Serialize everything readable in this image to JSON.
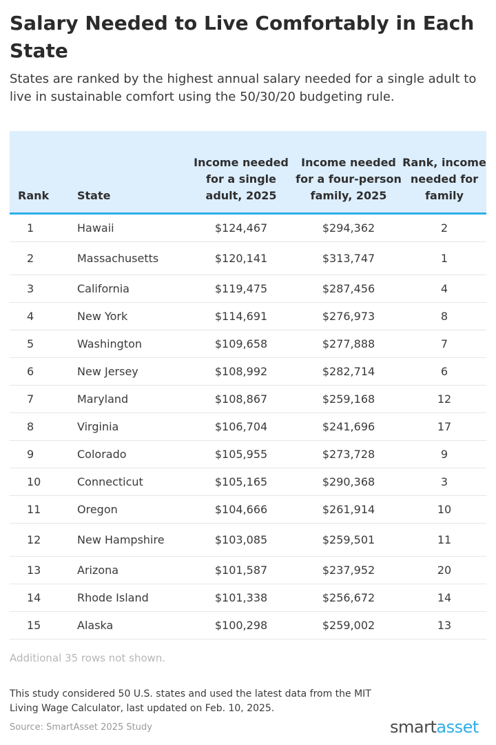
{
  "title": "Salary Needed to Live Comfortably in Each State",
  "subtitle": "States are ranked by the highest annual salary needed for a single adult to live in sustainable comfort using the 50/30/20 budgeting rule.",
  "chart_data": {
    "type": "table",
    "columns": [
      "Rank",
      "State",
      "Income needed for a single adult, 2025",
      "Income needed for a four-person family, 2025",
      "Rank, income needed for family"
    ],
    "rows": [
      [
        "1",
        "Hawaii",
        "$124,467",
        "$294,362",
        "2"
      ],
      [
        "2",
        "Massachusetts",
        "$120,141",
        "$313,747",
        "1"
      ],
      [
        "3",
        "California",
        "$119,475",
        "$287,456",
        "4"
      ],
      [
        "4",
        "New York",
        "$114,691",
        "$276,973",
        "8"
      ],
      [
        "5",
        "Washington",
        "$109,658",
        "$277,888",
        "7"
      ],
      [
        "6",
        "New Jersey",
        "$108,992",
        "$282,714",
        "6"
      ],
      [
        "7",
        "Maryland",
        "$108,867",
        "$259,168",
        "12"
      ],
      [
        "8",
        "Virginia",
        "$106,704",
        "$241,696",
        "17"
      ],
      [
        "9",
        "Colorado",
        "$105,955",
        "$273,728",
        "9"
      ],
      [
        "10",
        "Connecticut",
        "$105,165",
        "$290,368",
        "3"
      ],
      [
        "11",
        "Oregon",
        "$104,666",
        "$261,914",
        "10"
      ],
      [
        "12",
        "New Hampshire",
        "$103,085",
        "$259,501",
        "11"
      ],
      [
        "13",
        "Arizona",
        "$101,587",
        "$237,952",
        "20"
      ],
      [
        "14",
        "Rhode Island",
        "$101,338",
        "$256,672",
        "14"
      ],
      [
        "15",
        "Alaska",
        "$100,298",
        "$259,002",
        "13"
      ]
    ]
  },
  "note": "Additional 35 rows not shown.",
  "footnote": "This study considered 50 U.S. states and used the latest data from the MIT Living Wage Calculator, last updated on Feb. 10, 2025.",
  "source": "Source: SmartAsset 2025 Study",
  "logo": {
    "part1": "smart",
    "part2": "asset"
  },
  "colors": {
    "header_bg": "#ddeefc",
    "accent": "#2eaee8"
  }
}
